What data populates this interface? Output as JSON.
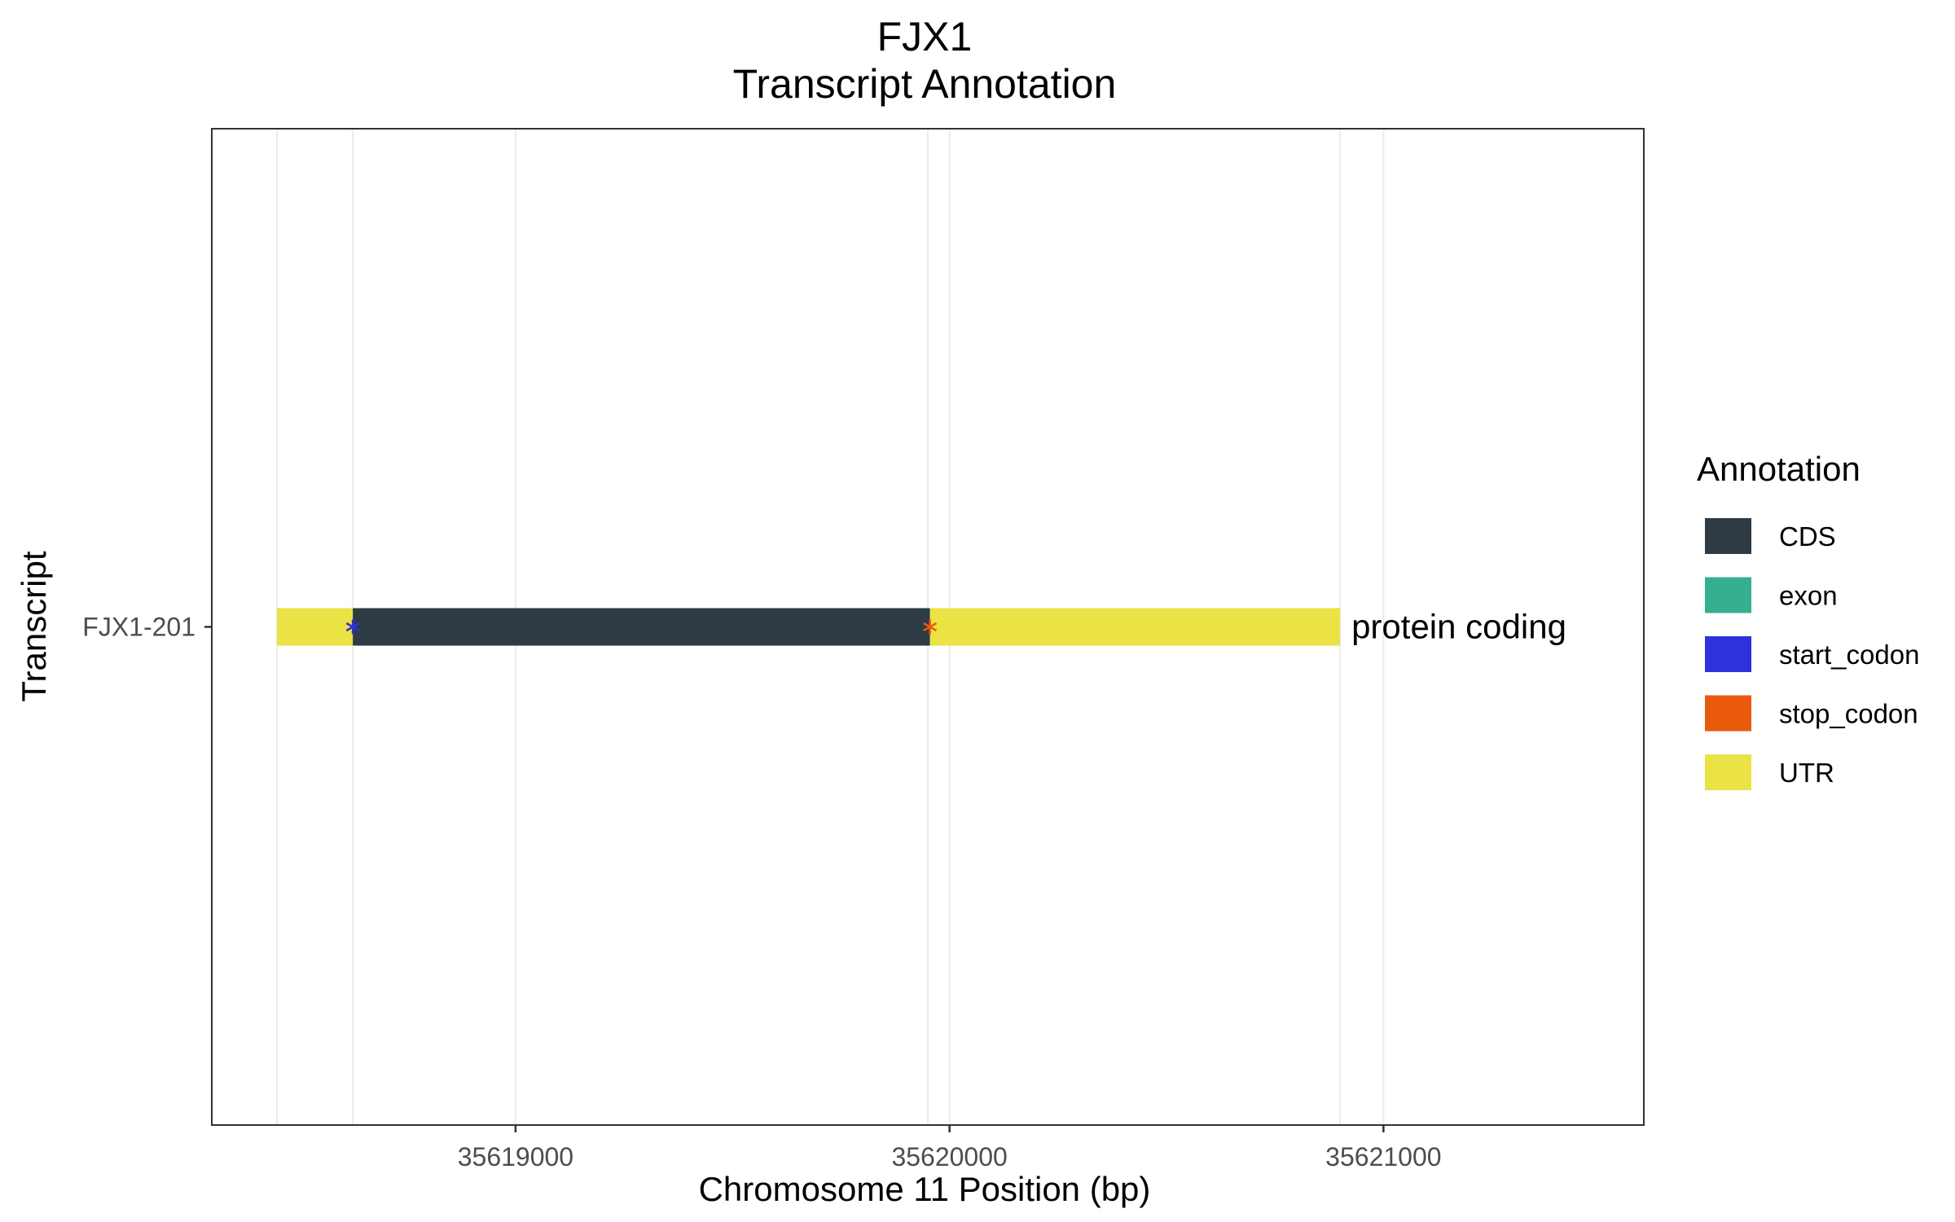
{
  "chart_data": {
    "type": "bar",
    "title": "FJX1",
    "subtitle": "Transcript Annotation",
    "xlabel": "Chromosome 11 Position (bp)",
    "ylabel": "Transcript",
    "xlim": [
      35618300,
      35621600
    ],
    "x_ticks": [
      35619000,
      35620000,
      35621000
    ],
    "x_tick_labels": [
      "35619000",
      "35620000",
      "35621000"
    ],
    "x_minor_grid": [
      35618450,
      35618625,
      35619950,
      35620900
    ],
    "grid": true,
    "legend": {
      "title": "Annotation",
      "position": "right",
      "entries": [
        {
          "label": "CDS",
          "color": "#2e3b45"
        },
        {
          "label": "exon",
          "color": "#35b08e"
        },
        {
          "label": "start_codon",
          "color": "#2f31db"
        },
        {
          "label": "stop_codon",
          "color": "#ea5a0c"
        },
        {
          "label": "UTR",
          "color": "#ebe245"
        }
      ]
    },
    "transcripts": [
      {
        "name": "FJX1-201",
        "biotype_label": "protein coding",
        "features": [
          {
            "type": "UTR",
            "start": 35618450,
            "end": 35618625
          },
          {
            "type": "CDS",
            "start": 35618625,
            "end": 35619955
          },
          {
            "type": "UTR",
            "start": 35619955,
            "end": 35620900
          }
        ],
        "codons": [
          {
            "type": "start_codon",
            "position": 35618625
          },
          {
            "type": "stop_codon",
            "position": 35619955
          }
        ]
      }
    ]
  }
}
